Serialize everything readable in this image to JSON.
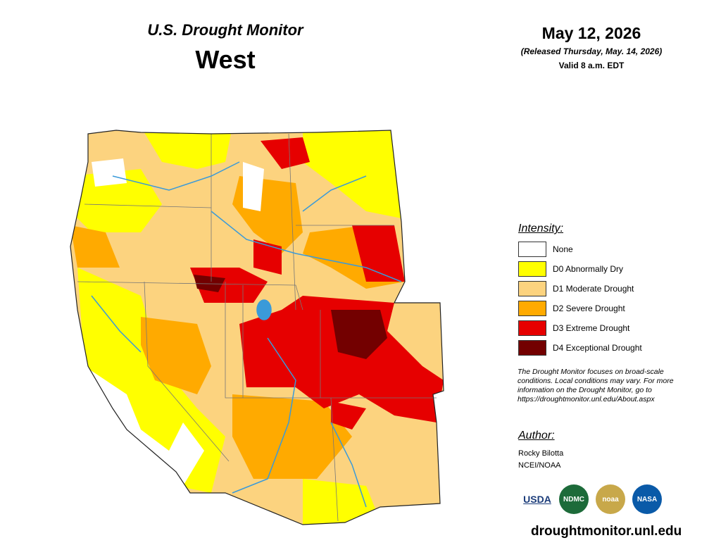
{
  "header": {
    "title": "U.S. Drought Monitor",
    "region": "West",
    "date": "May 12, 2026",
    "released": "(Released Thursday, May. 14, 2026)",
    "valid": "Valid 8 a.m. EDT"
  },
  "legend": {
    "title": "Intensity:",
    "items": [
      {
        "label": "None",
        "color": "#ffffff"
      },
      {
        "label": "D0 Abnormally Dry",
        "color": "#ffff00"
      },
      {
        "label": "D1 Moderate Drought",
        "color": "#fcd37f"
      },
      {
        "label": "D2 Severe Drought",
        "color": "#ffaa00"
      },
      {
        "label": "D3 Extreme Drought",
        "color": "#e60000"
      },
      {
        "label": "D4 Exceptional Drought",
        "color": "#730000"
      }
    ]
  },
  "note": [
    "The Drought Monitor focuses on broad-scale",
    "conditions. Local conditions may vary. For more",
    "information on the Drought Monitor, go to",
    "https://droughtmonitor.unl.edu/About.aspx"
  ],
  "author": {
    "title": "Author:",
    "lines": [
      "Rocky Bilotta",
      "NCEI/NOAA"
    ]
  },
  "logos": [
    "USDA",
    "NDMC",
    "noaa",
    "NASA"
  ],
  "url": "droughtmonitor.unl.edu"
}
